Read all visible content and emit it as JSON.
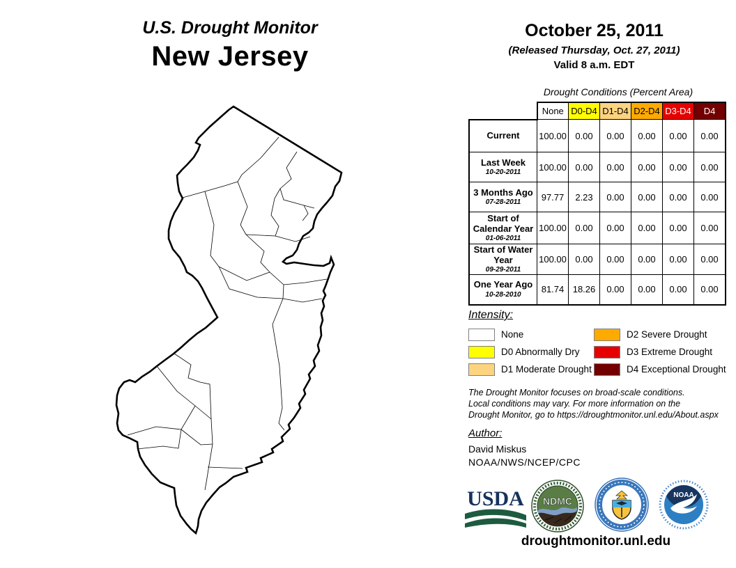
{
  "header": {
    "title": "U.S. Drought Monitor",
    "region": "New Jersey",
    "date": "October 25, 2011",
    "released": "(Released Thursday, Oct. 27, 2011)",
    "valid": "Valid 8 a.m. EDT"
  },
  "table": {
    "title": "Drought Conditions (Percent Area)",
    "columns": [
      {
        "label": "None",
        "bg": "#FFFFFF",
        "fg": "#000000"
      },
      {
        "label": "D0-D4",
        "bg": "#FFFF00",
        "fg": "#000000"
      },
      {
        "label": "D1-D4",
        "bg": "#FCD37F",
        "fg": "#000000"
      },
      {
        "label": "D2-D4",
        "bg": "#FFAA00",
        "fg": "#000000"
      },
      {
        "label": "D3-D4",
        "bg": "#E60000",
        "fg": "#FFFFFF"
      },
      {
        "label": "D4",
        "bg": "#730000",
        "fg": "#FFFFFF"
      }
    ],
    "rows": [
      {
        "label": "Current",
        "date": "",
        "values": [
          "100.00",
          "0.00",
          "0.00",
          "0.00",
          "0.00",
          "0.00"
        ]
      },
      {
        "label": "Last Week",
        "date": "10-20-2011",
        "values": [
          "100.00",
          "0.00",
          "0.00",
          "0.00",
          "0.00",
          "0.00"
        ]
      },
      {
        "label": "3 Months Ago",
        "date": "07-28-2011",
        "values": [
          "97.77",
          "2.23",
          "0.00",
          "0.00",
          "0.00",
          "0.00"
        ]
      },
      {
        "label": "Start of Calendar Year",
        "date": "01-06-2011",
        "values": [
          "100.00",
          "0.00",
          "0.00",
          "0.00",
          "0.00",
          "0.00"
        ]
      },
      {
        "label": "Start of Water Year",
        "date": "09-29-2011",
        "values": [
          "100.00",
          "0.00",
          "0.00",
          "0.00",
          "0.00",
          "0.00"
        ]
      },
      {
        "label": "One Year Ago",
        "date": "10-28-2010",
        "values": [
          "81.74",
          "18.26",
          "0.00",
          "0.00",
          "0.00",
          "0.00"
        ]
      }
    ]
  },
  "legend": {
    "title": "Intensity:",
    "items": [
      {
        "color": "#FFFFFF",
        "label": "None"
      },
      {
        "color": "#FFFF00",
        "label": "D0 Abnormally Dry"
      },
      {
        "color": "#FCD37F",
        "label": "D1 Moderate Drought"
      },
      {
        "color": "#FFAA00",
        "label": "D2 Severe Drought"
      },
      {
        "color": "#E60000",
        "label": "D3 Extreme Drought"
      },
      {
        "color": "#730000",
        "label": "D4 Exceptional Drought"
      }
    ]
  },
  "disclaimer": "The Drought Monitor focuses on broad-scale conditions.\nLocal conditions may vary. For more information on the\nDrought Monitor, go to https://droughtmonitor.unl.edu/About.aspx",
  "author": {
    "label": "Author:",
    "name": "David Miskus",
    "org": "NOAA/NWS/NCEP/CPC"
  },
  "logos": {
    "usda": "USDA",
    "ndmc": "NDMC",
    "noaa": "NOAA"
  },
  "footer": {
    "website": "droughtmonitor.unl.edu"
  },
  "map": {
    "state": "New Jersey",
    "fill": "#FFFFFF"
  }
}
